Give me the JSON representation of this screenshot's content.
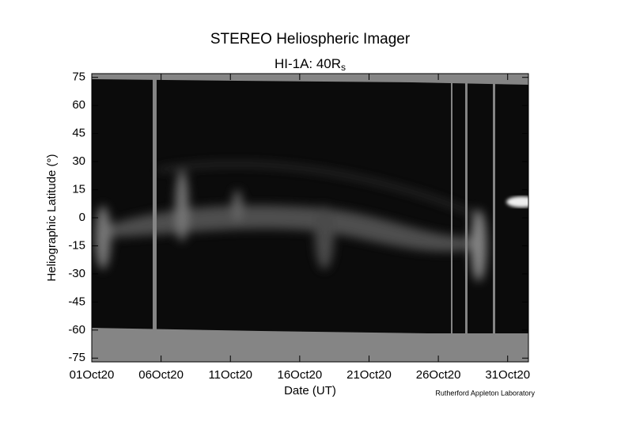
{
  "chart_data": {
    "type": "image",
    "title": "STEREO Heliospheric Imager",
    "subtitle": "HI-1A: 40R",
    "subtitle_subscript": "s",
    "x_label": "Date (UT)",
    "y_label": "Heliographic Latitude (°)",
    "credit": "Rutherford Appleton Laboratory",
    "xlim": [
      0,
      31.5
    ],
    "xticks": [
      {
        "value": 0,
        "label": "01Oct20"
      },
      {
        "value": 5,
        "label": "06Oct20"
      },
      {
        "value": 10,
        "label": "11Oct20"
      },
      {
        "value": 15,
        "label": "16Oct20"
      },
      {
        "value": 20,
        "label": "21Oct20"
      },
      {
        "value": 25,
        "label": "26Oct20"
      },
      {
        "value": 30,
        "label": "31Oct20"
      }
    ],
    "ylim": [
      -77,
      77
    ],
    "yticks": [
      -75,
      -60,
      -45,
      -30,
      -15,
      0,
      15,
      30,
      45,
      60,
      75
    ]
  }
}
